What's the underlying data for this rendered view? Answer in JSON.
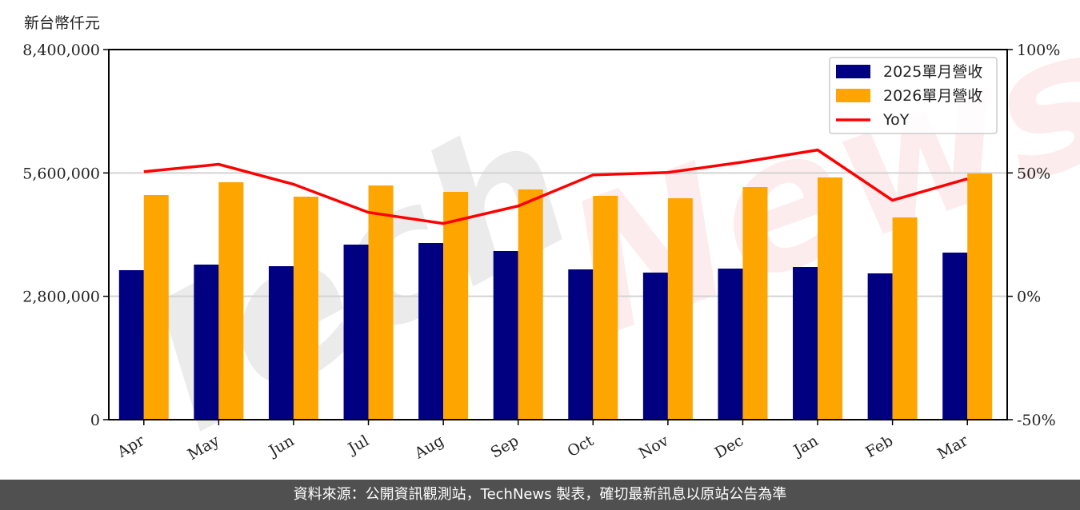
{
  "chart_data": {
    "type": "bar",
    "title": "",
    "unit_label": "新台幣仟元",
    "xlabel": "",
    "ylabel": "新台幣仟元",
    "y2label": "YoY",
    "categories": [
      "Apr",
      "May",
      "Jun",
      "Jul",
      "Aug",
      "Sep",
      "Oct",
      "Nov",
      "Dec",
      "Jan",
      "Feb",
      "Mar"
    ],
    "series": [
      {
        "name": "2025單月營收",
        "type": "bar",
        "axis": "left",
        "color": "#000080",
        "values": [
          3392600,
          3519600,
          3483300,
          3973200,
          4009500,
          3828000,
          3410800,
          3338200,
          3428900,
          3465200,
          3320100,
          3791800
        ]
      },
      {
        "name": "2026單月營收",
        "type": "bar",
        "axis": "left",
        "color": "#FFA500",
        "values": [
          5098000,
          5388300,
          5061800,
          5315800,
          5170600,
          5225000,
          5079900,
          5025500,
          5279500,
          5497200,
          4590000,
          5587900
        ]
      },
      {
        "name": "YoY",
        "type": "line",
        "axis": "right",
        "color": "#FF0000",
        "unit": "%",
        "values": [
          50.5,
          53.5,
          45.4,
          34.0,
          29.5,
          36.6,
          49.2,
          50.2,
          54.4,
          59.3,
          38.9,
          47.6
        ]
      }
    ],
    "ylim": [
      0,
      8400000
    ],
    "y_ticks": [
      0,
      2800000,
      5600000,
      8400000
    ],
    "y_tick_labels": [
      "0",
      "2,800,000",
      "5,600,000",
      "8,400,000"
    ],
    "y2lim": [
      -50,
      100
    ],
    "y2_ticks": [
      -50,
      0,
      50,
      100
    ],
    "y2_tick_labels": [
      "-50%",
      "0%",
      "50%",
      "100%"
    ],
    "grid": "horizontal",
    "legend_position": "upper right",
    "watermark": "TechNews"
  },
  "footer": {
    "text": "資料來源：公開資訊觀測站，TechNews 製表，確切最新訊息以原站公告為準"
  }
}
